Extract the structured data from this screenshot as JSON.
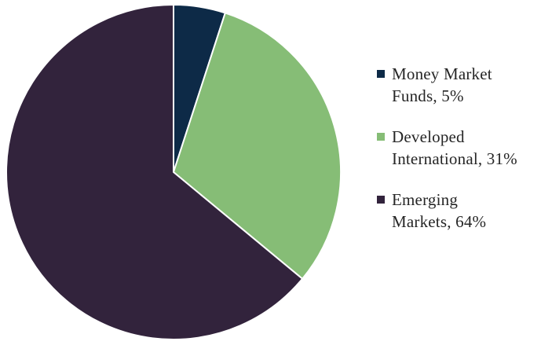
{
  "chart_data": {
    "type": "pie",
    "title": "",
    "start_angle_deg": 0,
    "direction": "clockwise",
    "legend_placement": "right",
    "slices": [
      {
        "label_line1": "Money Market",
        "label_line2": "Funds, 5%",
        "value": 5,
        "color": "#0d2a47"
      },
      {
        "label_line1": "Developed",
        "label_line2": "International, 31%",
        "value": 31,
        "color": "#86bd76"
      },
      {
        "label_line1": "Emerging",
        "label_line2": "Markets, 64%",
        "value": 64,
        "color": "#32233c"
      }
    ]
  }
}
